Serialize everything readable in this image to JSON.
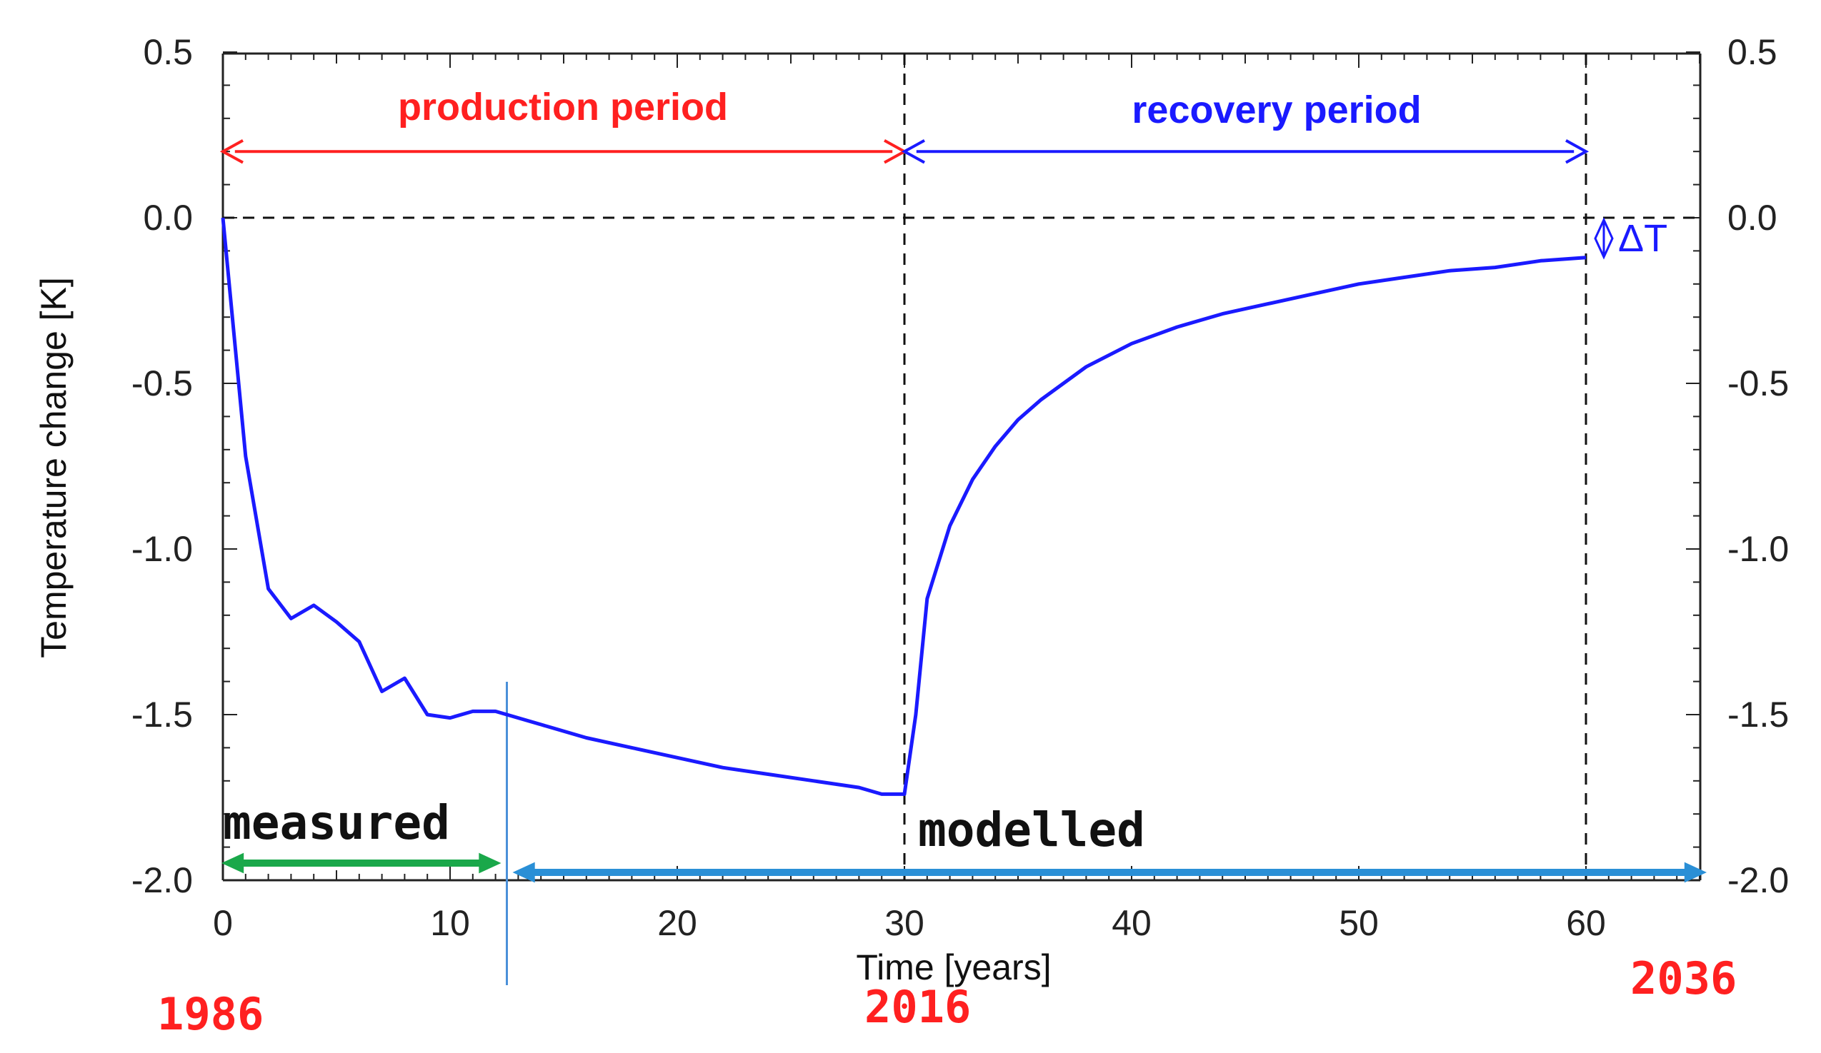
{
  "chart_data": {
    "type": "line",
    "title": "",
    "xlabel": "Time [years]",
    "ylabel": "Temperature change [K]",
    "xlim": [
      0,
      65
    ],
    "ylim": [
      -2.0,
      0.5
    ],
    "x_ticks": [
      "0",
      "10",
      "20",
      "30",
      "40",
      "50",
      "60"
    ],
    "x_tick_values": [
      0,
      10,
      20,
      30,
      40,
      50,
      60
    ],
    "y_ticks": [
      "0.5",
      "0.0",
      "-0.5",
      "-1.0",
      "-1.5",
      "-2.0"
    ],
    "y_tick_values": [
      0.5,
      0.0,
      -0.5,
      -1.0,
      -1.5,
      -2.0
    ],
    "y_ticks_right": [
      "0.5",
      "0.0",
      "-0.5",
      "-1.0",
      "-1.5",
      "-2.0"
    ],
    "series": [
      {
        "name": "temperature change",
        "color": "#1a1aff",
        "x": [
          0,
          1,
          2,
          3,
          4,
          5,
          6,
          7,
          8,
          9,
          10,
          11,
          12,
          14,
          16,
          18,
          20,
          22,
          24,
          26,
          28,
          29,
          30,
          30.5,
          31,
          32,
          33,
          34,
          35,
          36,
          38,
          40,
          42,
          44,
          46,
          48,
          50,
          52,
          54,
          56,
          58,
          60
        ],
        "y": [
          0.0,
          -0.72,
          -1.12,
          -1.21,
          -1.17,
          -1.22,
          -1.28,
          -1.43,
          -1.39,
          -1.5,
          -1.51,
          -1.49,
          -1.49,
          -1.53,
          -1.57,
          -1.6,
          -1.63,
          -1.66,
          -1.68,
          -1.7,
          -1.72,
          -1.74,
          -1.74,
          -1.5,
          -1.15,
          -0.93,
          -0.79,
          -0.69,
          -0.61,
          -0.55,
          -0.45,
          -0.38,
          -0.33,
          -0.29,
          -0.26,
          -0.23,
          -0.2,
          -0.18,
          -0.16,
          -0.15,
          -0.13,
          -0.12
        ]
      }
    ],
    "reference_lines": {
      "zero_line_y": 0.0,
      "production_end_x": 30,
      "recovery_end_x": 60,
      "measured_end_x": 12.5
    },
    "annotations": {
      "production_period": {
        "label": "production period",
        "x_start": 0,
        "x_end": 30,
        "y": 0.2,
        "color": "#ff2020"
      },
      "recovery_period": {
        "label": "recovery period",
        "x_start": 30,
        "x_end": 60,
        "y": 0.2,
        "color": "#1a1aff"
      },
      "measured": {
        "label": "measured",
        "x_start": 0,
        "x_end": 12.5,
        "y": -1.95,
        "color": "#1aa84a"
      },
      "modelled": {
        "label": "modelled",
        "x_start": 12.5,
        "x_end": 65,
        "y": -1.95,
        "color": "#2a8fd6"
      },
      "delta_t": {
        "label": "ΔT",
        "x": 61,
        "color": "#1a1aff"
      },
      "years": [
        {
          "label": "1986",
          "color": "#ff2020"
        },
        {
          "label": "2016",
          "color": "#ff2020"
        },
        {
          "label": "2036",
          "color": "#ff2020"
        }
      ]
    }
  }
}
